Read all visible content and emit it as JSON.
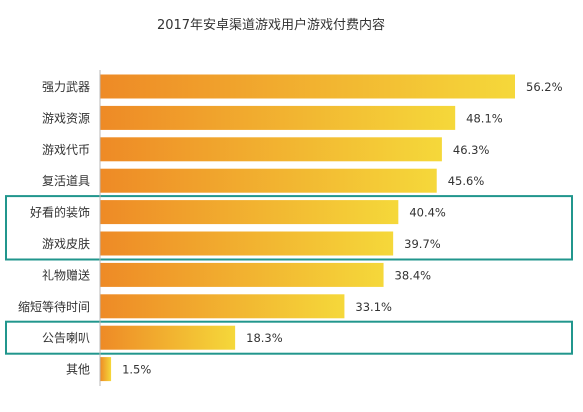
{
  "chart_data": {
    "type": "bar",
    "orientation": "horizontal",
    "title": "2017年安卓渠道游戏用户游戏付费内容",
    "categories": [
      "强力武器",
      "游戏资源",
      "游戏代币",
      "复活道具",
      "好看的装饰",
      "游戏皮肤",
      "礼物赠送",
      "缩短等待时间",
      "公告喇叭",
      "其他"
    ],
    "values": [
      56.2,
      48.1,
      46.3,
      45.6,
      40.4,
      39.7,
      38.4,
      33.1,
      18.3,
      1.5
    ],
    "value_labels": [
      "56.2%",
      "48.1%",
      "46.3%",
      "45.6%",
      "40.4%",
      "39.7%",
      "38.4%",
      "33.1%",
      "18.3%",
      "1.5%"
    ],
    "unit": "%",
    "bar_gradient": [
      "#ee8a26",
      "#f5d83a"
    ],
    "highlight_color": "#21968d",
    "highlight_groups": [
      [
        "好看的装饰",
        "游戏皮肤"
      ],
      [
        "公告喇叭"
      ]
    ],
    "xlim": [
      0,
      56.2
    ],
    "grid": false,
    "axis_line": true,
    "legend": "none"
  }
}
